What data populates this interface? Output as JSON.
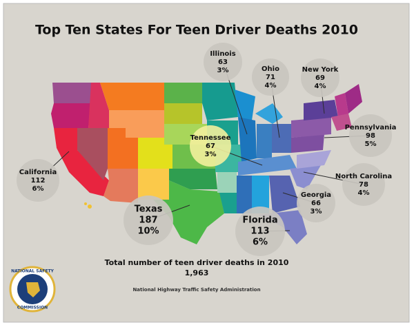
{
  "title": "Top Ten States For Teen Driver Deaths 2010",
  "states": [
    {
      "name": "Illinois",
      "deaths": 63,
      "share": "3%"
    },
    {
      "name": "Ohio",
      "deaths": 71,
      "share": "4%"
    },
    {
      "name": "New York",
      "deaths": 69,
      "share": "4%"
    },
    {
      "name": "Pennsylvania",
      "deaths": 98,
      "share": "5%"
    },
    {
      "name": "Tennessee",
      "deaths": 67,
      "share": "3%"
    },
    {
      "name": "California",
      "deaths": 112,
      "share": "6%"
    },
    {
      "name": "North Carolina",
      "deaths": 78,
      "share": "4%"
    },
    {
      "name": "Georgia",
      "deaths": 66,
      "share": "3%"
    },
    {
      "name": "Texas",
      "deaths": 187,
      "share": "10%"
    },
    {
      "name": "Florida",
      "deaths": 113,
      "share": "6%"
    }
  ],
  "total": {
    "label": "Total number of teen driver deaths in 2010",
    "value": "1,963"
  },
  "source": "National Highway Traffic Safety Administration",
  "seal": {
    "top": "NATIONAL SAFETY",
    "bottom": "COMMISSION"
  }
}
